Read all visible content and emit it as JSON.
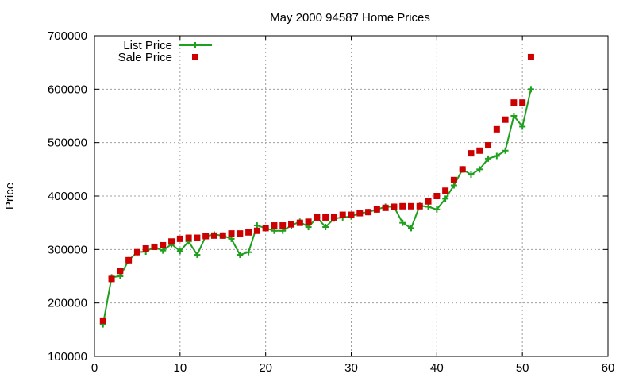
{
  "chart_data": {
    "type": "line",
    "title": "May 2000 94587 Home Prices",
    "xlabel": "",
    "ylabel": "Price",
    "xlim": [
      0,
      60
    ],
    "ylim": [
      100000,
      700000
    ],
    "xticks": [
      0,
      10,
      20,
      30,
      40,
      50,
      60
    ],
    "yticks": [
      100000,
      200000,
      300000,
      400000,
      500000,
      600000,
      700000
    ],
    "grid": true,
    "legend_position": "top-left",
    "series": [
      {
        "name": "List Price",
        "style": "linespoints",
        "marker": "plus",
        "color": "#1ea01e",
        "x": [
          1,
          2,
          3,
          4,
          5,
          6,
          7,
          8,
          9,
          10,
          11,
          12,
          13,
          14,
          15,
          16,
          17,
          18,
          19,
          20,
          21,
          22,
          23,
          24,
          25,
          26,
          27,
          28,
          29,
          30,
          31,
          32,
          33,
          34,
          35,
          36,
          37,
          38,
          39,
          40,
          41,
          42,
          43,
          44,
          45,
          46,
          47,
          48,
          49,
          50,
          51
        ],
        "values": [
          160000,
          248000,
          250000,
          280000,
          295000,
          296000,
          305000,
          298000,
          310000,
          297000,
          315000,
          290000,
          325000,
          328000,
          326000,
          320000,
          290000,
          295000,
          345000,
          340000,
          335000,
          335000,
          345000,
          352000,
          342000,
          360000,
          342000,
          358000,
          360000,
          362000,
          368000,
          370000,
          375000,
          380000,
          380000,
          350000,
          340000,
          382000,
          380000,
          375000,
          395000,
          420000,
          450000,
          440000,
          450000,
          470000,
          475000,
          485000,
          550000,
          530000,
          600000
        ]
      },
      {
        "name": "Sale Price",
        "style": "points",
        "marker": "square",
        "color": "#cc0000",
        "x": [
          1,
          2,
          3,
          4,
          5,
          6,
          7,
          8,
          9,
          10,
          11,
          12,
          13,
          14,
          15,
          16,
          17,
          18,
          19,
          20,
          21,
          22,
          23,
          24,
          25,
          26,
          27,
          28,
          29,
          30,
          31,
          32,
          33,
          34,
          35,
          36,
          37,
          38,
          39,
          40,
          41,
          42,
          43,
          44,
          45,
          46,
          47,
          48,
          49,
          50,
          51
        ],
        "values": [
          167000,
          245000,
          260000,
          280000,
          295000,
          302000,
          305000,
          308000,
          315000,
          320000,
          322000,
          322000,
          325000,
          326000,
          326000,
          330000,
          330000,
          332000,
          335000,
          340000,
          345000,
          345000,
          347000,
          350000,
          352000,
          360000,
          360000,
          360000,
          365000,
          365000,
          368000,
          370000,
          375000,
          378000,
          380000,
          381000,
          381000,
          381000,
          390000,
          400000,
          410000,
          430000,
          450000,
          480000,
          485000,
          495000,
          525000,
          543000,
          575000,
          575000,
          660000
        ]
      }
    ]
  },
  "colors": {
    "list_price": "#1ea01e",
    "sale_price": "#cc0000",
    "grid": "#a0a0a0",
    "axis": "#000000"
  }
}
